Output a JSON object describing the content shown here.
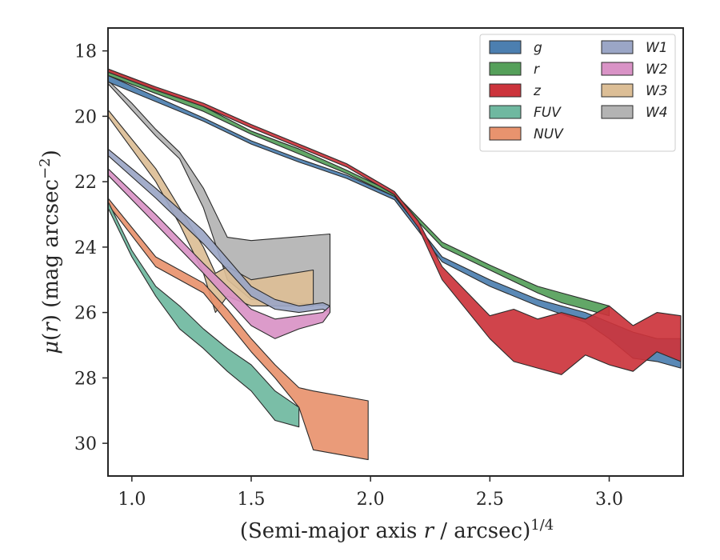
{
  "chart_data": {
    "type": "area",
    "xlabel": "(Semi-major axis r / arcsec)^1/4",
    "ylabel": "μ(r) (mag arcsec^−2)",
    "xlim": [
      0.9,
      3.31
    ],
    "ylim": [
      31.0,
      17.3
    ],
    "y_inverted": true,
    "grid": false,
    "legend_position": "upper right",
    "legend_columns": 2,
    "x_ticks": [
      1.0,
      1.5,
      2.0,
      2.5,
      3.0
    ],
    "x_tick_labels": [
      "1.0",
      "1.5",
      "2.0",
      "2.5",
      "3.0"
    ],
    "y_ticks": [
      18,
      20,
      22,
      24,
      26,
      28,
      30
    ],
    "y_tick_labels": [
      "18",
      "20",
      "22",
      "24",
      "26",
      "28",
      "30"
    ],
    "series": [
      {
        "name": "g",
        "color": "#4c7fb0",
        "x": [
          0.9,
          1.1,
          1.3,
          1.5,
          1.7,
          1.9,
          2.1,
          2.3,
          2.5,
          2.7,
          2.9,
          3.0,
          3.1,
          3.2,
          3.3
        ],
        "y_low": [
          18.95,
          19.55,
          20.15,
          20.85,
          21.4,
          21.9,
          22.55,
          24.45,
          25.2,
          25.8,
          26.3,
          26.8,
          27.4,
          27.5,
          27.7
        ],
        "y_high": [
          18.75,
          19.4,
          20.05,
          20.75,
          21.3,
          21.8,
          22.45,
          24.3,
          25.0,
          25.6,
          26.0,
          26.3,
          26.6,
          26.8,
          26.8
        ]
      },
      {
        "name": "r",
        "color": "#55a05a",
        "x": [
          0.9,
          1.1,
          1.3,
          1.5,
          1.7,
          1.9,
          2.1,
          2.3,
          2.5,
          2.7,
          2.8,
          2.9,
          3.0
        ],
        "y_low": [
          18.75,
          19.3,
          19.85,
          20.55,
          21.15,
          21.75,
          22.45,
          24.0,
          24.7,
          25.4,
          25.7,
          25.9,
          26.1
        ],
        "y_high": [
          18.55,
          19.15,
          19.7,
          20.45,
          21.0,
          21.65,
          22.35,
          23.85,
          24.55,
          25.2,
          25.4,
          25.6,
          25.8
        ]
      },
      {
        "name": "z",
        "color": "#cc343c",
        "x": [
          0.9,
          1.1,
          1.3,
          1.5,
          1.7,
          1.9,
          2.1,
          2.2,
          2.3,
          2.5,
          2.6,
          2.7,
          2.8,
          2.9,
          3.0,
          3.1,
          3.2,
          3.3
        ],
        "y_low": [
          18.65,
          19.2,
          19.7,
          20.35,
          20.95,
          21.55,
          22.4,
          23.4,
          25.0,
          26.8,
          27.5,
          27.7,
          27.9,
          27.3,
          27.6,
          27.8,
          27.2,
          27.5
        ],
        "y_high": [
          18.55,
          19.1,
          19.6,
          20.25,
          20.85,
          21.45,
          22.3,
          23.2,
          24.6,
          26.1,
          25.9,
          26.2,
          26.0,
          26.2,
          25.8,
          26.4,
          26.0,
          26.1
        ]
      },
      {
        "name": "FUV",
        "color": "#6fb8a0",
        "x": [
          0.9,
          1.0,
          1.1,
          1.2,
          1.3,
          1.4,
          1.5,
          1.6,
          1.7
        ],
        "y_low": [
          22.8,
          24.3,
          25.5,
          26.5,
          27.1,
          27.8,
          28.4,
          29.3,
          29.5
        ],
        "y_high": [
          22.6,
          24.1,
          25.2,
          25.8,
          26.5,
          27.1,
          27.6,
          28.4,
          28.9
        ]
      },
      {
        "name": "NUV",
        "color": "#e8936e",
        "x": [
          0.9,
          1.1,
          1.3,
          1.4,
          1.5,
          1.6,
          1.7,
          1.76,
          1.99
        ],
        "y_low": [
          22.7,
          24.6,
          25.4,
          26.3,
          27.2,
          28.0,
          28.9,
          30.2,
          30.5
        ],
        "y_high": [
          22.5,
          24.3,
          25.1,
          25.9,
          26.8,
          27.6,
          28.3,
          28.4,
          28.7
        ]
      },
      {
        "name": "W1",
        "color": "#9ba6c6",
        "x": [
          0.9,
          1.1,
          1.3,
          1.5,
          1.6,
          1.7,
          1.8,
          1.83
        ],
        "y_low": [
          21.2,
          22.5,
          23.9,
          25.5,
          25.9,
          26.0,
          25.9,
          26.0
        ],
        "y_high": [
          21.0,
          22.2,
          23.5,
          25.2,
          25.6,
          25.8,
          25.7,
          25.8
        ]
      },
      {
        "name": "W2",
        "color": "#d993c6",
        "x": [
          0.9,
          1.1,
          1.3,
          1.5,
          1.6,
          1.7,
          1.8,
          1.83
        ],
        "y_low": [
          21.8,
          23.3,
          24.8,
          26.4,
          26.8,
          26.5,
          26.3,
          26.0
        ],
        "y_high": [
          21.6,
          23.0,
          24.5,
          25.9,
          26.2,
          26.1,
          26.0,
          25.8
        ]
      },
      {
        "name": "W3",
        "color": "#dcbe96",
        "x": [
          0.9,
          1.0,
          1.1,
          1.2,
          1.3,
          1.35,
          1.4,
          1.5,
          1.76
        ],
        "y_low": [
          20.0,
          21.0,
          22.0,
          23.3,
          24.8,
          26.0,
          25.5,
          25.8,
          25.8
        ],
        "y_high": [
          19.8,
          20.7,
          21.6,
          22.8,
          24.0,
          24.8,
          24.6,
          25.0,
          24.7
        ]
      },
      {
        "name": "W4",
        "color": "#b3b3b3",
        "x": [
          0.9,
          1.0,
          1.1,
          1.2,
          1.3,
          1.4,
          1.5,
          1.83
        ],
        "y_low": [
          19.0,
          19.8,
          20.6,
          21.3,
          22.8,
          25.0,
          25.6,
          25.8
        ],
        "y_high": [
          18.9,
          19.6,
          20.4,
          21.1,
          22.2,
          23.7,
          23.8,
          23.6
        ]
      }
    ]
  }
}
